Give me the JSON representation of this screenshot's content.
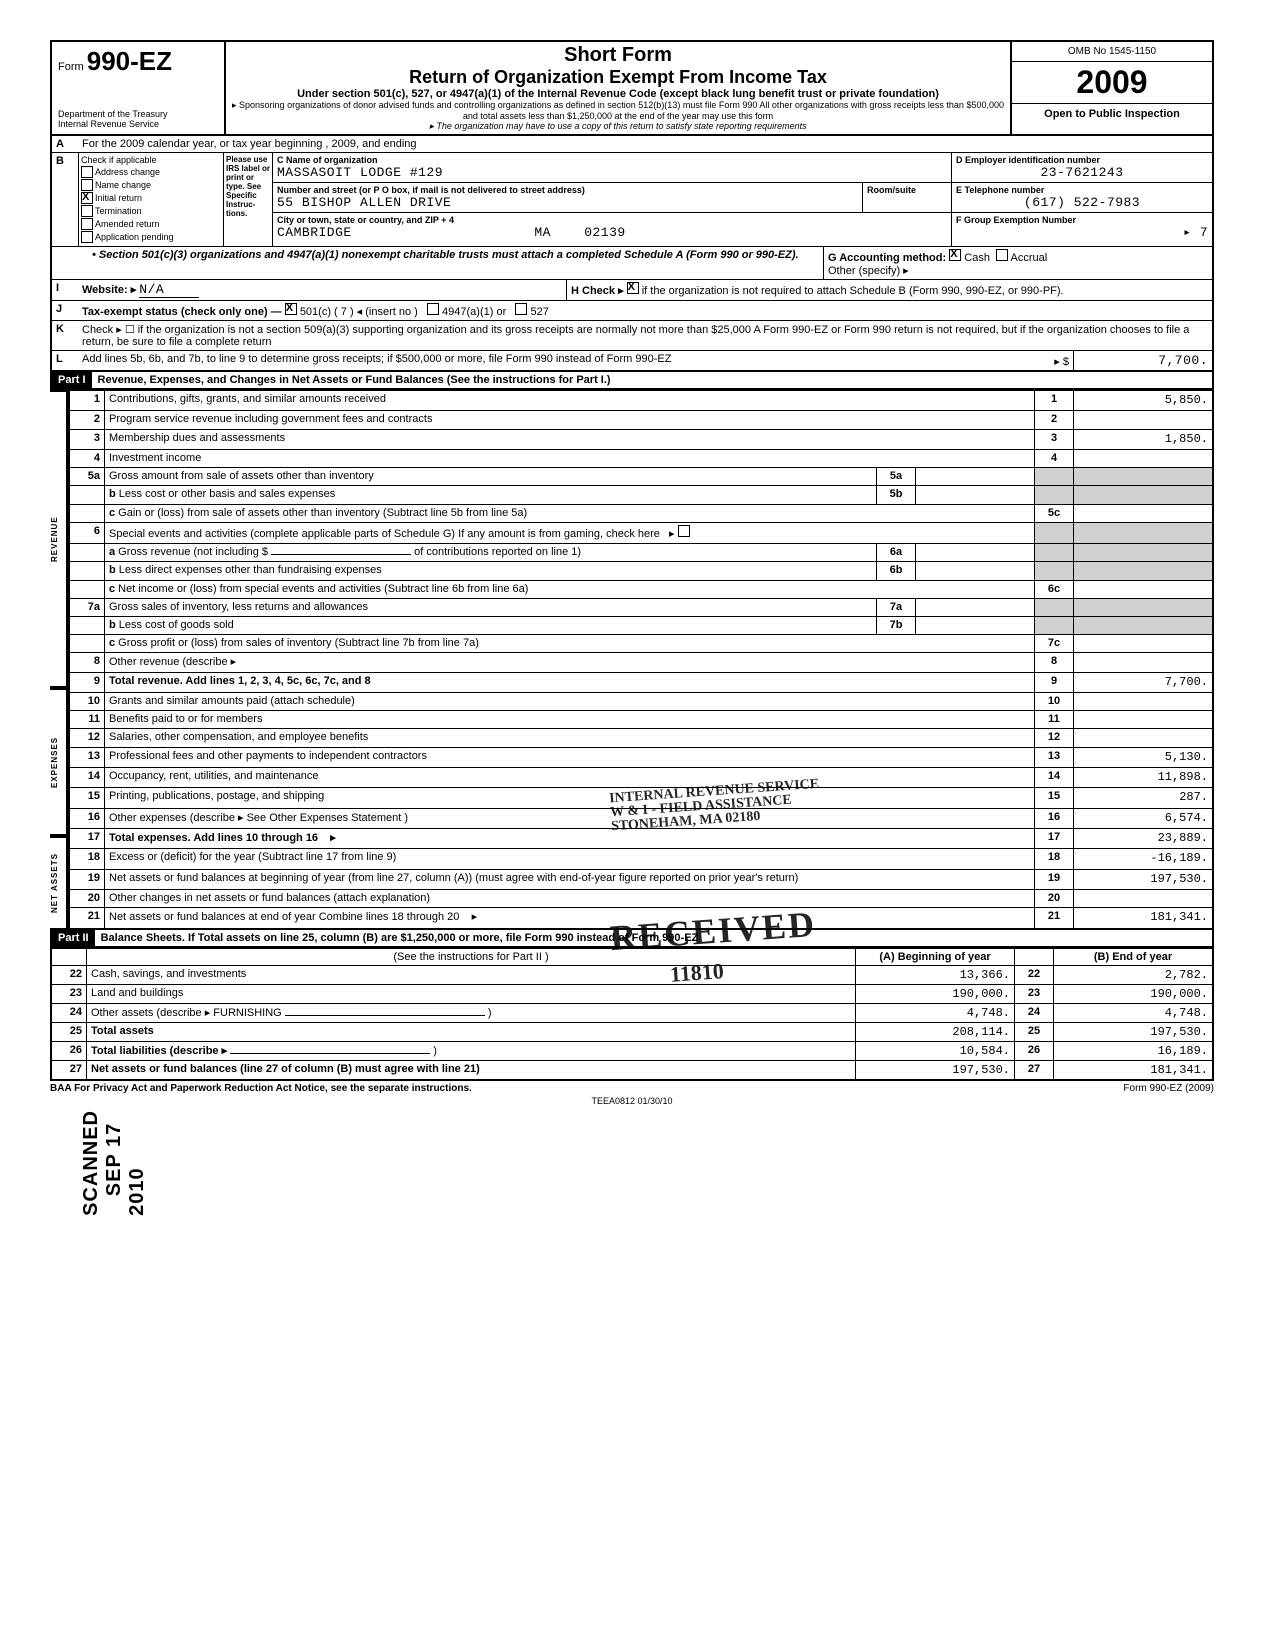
{
  "form": {
    "number_prefix": "Form",
    "number": "990-EZ",
    "dept1": "Department of the Treasury",
    "dept2": "Internal Revenue Service",
    "short_form": "Short Form",
    "title": "Return of Organization Exempt From Income Tax",
    "subtitle": "Under section 501(c), 527, or 4947(a)(1) of the Internal Revenue Code (except black lung benefit trust or private foundation)",
    "note1": "▸ Sponsoring organizations of donor advised funds and controlling organizations as defined in section 512(b)(13) must file Form 990  All other organizations with gross receipts less than $500,000 and total assets less than $1,250,000 at the end of the year may use this form",
    "note2": "▸ The organization may have to use a copy of this return to satisfy state reporting requirements",
    "omb": "OMB No 1545-1150",
    "year": "2009",
    "open_public": "Open to Public Inspection"
  },
  "line_a": "For the 2009 calendar year, or tax year beginning                                          , 2009, and ending",
  "section_b": {
    "header": "Check if applicable",
    "please": "Please use IRS label or print or type. See Specific Instruc-tions.",
    "items": [
      {
        "label": "Address change",
        "checked": false
      },
      {
        "label": "Name change",
        "checked": false
      },
      {
        "label": "Initial return",
        "checked": true
      },
      {
        "label": "Termination",
        "checked": false
      },
      {
        "label": "Amended return",
        "checked": false
      },
      {
        "label": "Application pending",
        "checked": false
      }
    ]
  },
  "org": {
    "c_label": "C   Name of organization",
    "name": "MASSASOIT LODGE #129",
    "addr_label": "Number and street (or P O  box, if mail is not delivered to street address)",
    "room_label": "Room/suite",
    "street": "55 BISHOP ALLEN DRIVE",
    "city_label": "City or town, state or country, and ZIP + 4",
    "city": "CAMBRIDGE",
    "state": "MA",
    "zip": "02139"
  },
  "right": {
    "d_label": "D   Employer identification number",
    "ein": "23-7621243",
    "e_label": "E   Telephone number",
    "phone": "(617) 522-7983",
    "f_label": "F   Group Exemption Number",
    "group_arrow": "▸ 7"
  },
  "section_501_note": "• Section 501(c)(3) organizations and 4947(a)(1) nonexempt charitable trusts must attach a completed Schedule A (Form 990 or 990-EZ).",
  "g": {
    "label": "G   Accounting method:",
    "cash_checked": true,
    "cash": "Cash",
    "accrual": "Accrual",
    "other": "Other (specify) ▸"
  },
  "h": {
    "label": "H   Check ▸",
    "checked": true,
    "text": "if the organization is not required to attach Schedule B (Form 990, 990-EZ, or 990-PF)."
  },
  "i": {
    "label": "Website: ▸",
    "value": "N/A"
  },
  "j": {
    "label": "Tax-exempt status (check only one) —",
    "checked": true,
    "501c": "501(c) (       7  ) ◂ (insert no )",
    "4947": "4947(a)(1) or",
    "527": "527"
  },
  "k": "Check ▸  ☐  if the organization is not a section 509(a)(3) supporting organization and its gross receipts are normally not more than $25,000  A Form 990-EZ or Form 990 return is not required, but if the organization chooses to file a return, be sure to file a complete return",
  "l": {
    "text": "Add lines 5b, 6b, and 7b, to line 9 to determine gross receipts; if $500,000 or more, file Form 990 instead of Form 990-EZ",
    "arrow": "▸ $",
    "value": "7,700."
  },
  "part1": {
    "label": "Part I",
    "title": "Revenue, Expenses, and Changes in Net Assets or Fund Balances (See the instructions for Part I.)",
    "side_rev": "REVENUE",
    "side_exp": "EXPENSES",
    "side_net": "NET ASSETS",
    "rows": {
      "1": {
        "desc": "Contributions, gifts, grants, and similar amounts received",
        "val": "5,850."
      },
      "2": {
        "desc": "Program service revenue including government fees and contracts",
        "val": ""
      },
      "3": {
        "desc": "Membership dues and assessments",
        "val": "1,850."
      },
      "4": {
        "desc": "Investment income",
        "val": ""
      },
      "5a": {
        "desc": "Gross amount from sale of assets other than inventory"
      },
      "5b": {
        "desc": "Less  cost or other basis and sales expenses"
      },
      "5c": {
        "desc": "Gain or (loss) from sale of assets other than inventory (Subtract line 5b from line 5a)",
        "val": ""
      },
      "6": {
        "desc": "Special events and activities (complete applicable parts of Schedule G)  If any amount is from gaming, check here"
      },
      "6a_pre": "Gross revenue (not including $",
      "6a_post": "of contributions reported on line 1)",
      "6b": {
        "desc": "Less  direct expenses other than fundraising expenses"
      },
      "6c": {
        "desc": "Net income or (loss) from special events and activities (Subtract line 6b from line 6a)",
        "val": ""
      },
      "7a": {
        "desc": "Gross sales of inventory, less returns and allowances"
      },
      "7b": {
        "desc": "Less  cost of goods sold"
      },
      "7c": {
        "desc": "Gross profit or (loss) from sales of inventory (Subtract line 7b from line 7a)",
        "val": ""
      },
      "8": {
        "desc": "Other revenue (describe ▸",
        "val": ""
      },
      "9": {
        "desc": "Total revenue. Add lines 1, 2, 3, 4, 5c, 6c, 7c, and 8",
        "val": "7,700."
      },
      "10": {
        "desc": "Grants and similar amounts paid (attach schedule)",
        "val": ""
      },
      "11": {
        "desc": "Benefits paid to or for members",
        "val": ""
      },
      "12": {
        "desc": "Salaries, other compensation, and employee benefits",
        "val": ""
      },
      "13": {
        "desc": "Professional fees and other payments to independent contractors",
        "val": "5,130."
      },
      "14": {
        "desc": "Occupancy, rent, utilities, and maintenance",
        "val": "11,898."
      },
      "15": {
        "desc": "Printing, publications, postage, and shipping",
        "val": "287."
      },
      "16": {
        "desc": "Other expenses (describe ▸  See Other Expenses Statement",
        "val": "6,574."
      },
      "17": {
        "desc": "Total expenses. Add lines 10 through 16",
        "val": "23,889."
      },
      "18": {
        "desc": "Excess or (deficit) for the year (Subtract line 17 from line 9)",
        "val": "-16,189."
      },
      "19": {
        "desc": "Net assets or fund balances at beginning of year (from line 27, column (A)) (must agree with end-of-year figure reported on prior year's return)",
        "val": "197,530."
      },
      "20": {
        "desc": "Other changes in net assets or fund balances (attach explanation)",
        "val": ""
      },
      "21": {
        "desc": "Net assets or fund balances at end of year  Combine lines 18 through 20",
        "val": "181,341."
      }
    }
  },
  "part2": {
    "label": "Part II",
    "title": "Balance Sheets. If Total assets on line 25, column (B) are $1,250,000 or more, file Form 990 instead of Form 990-EZ",
    "instr": "(See the instructions for Part II )",
    "col_a": "(A) Beginning of year",
    "col_b": "(B) End of year",
    "rows": [
      {
        "n": "22",
        "desc": "Cash, savings, and investments",
        "a": "13,366.",
        "b": "2,782."
      },
      {
        "n": "23",
        "desc": "Land and buildings",
        "a": "190,000.",
        "b": "190,000."
      },
      {
        "n": "24",
        "desc": "Other assets (describe ▸   FURNISHING",
        "a": "4,748.",
        "b": "4,748."
      },
      {
        "n": "25",
        "desc": "Total assets",
        "a": "208,114.",
        "b": "197,530.",
        "bold": true
      },
      {
        "n": "26",
        "desc": "Total liabilities (describe ▸",
        "a": "10,584.",
        "b": "16,189.",
        "bold": true
      },
      {
        "n": "27",
        "desc": "Net assets or fund balances (line 27 of column (B) must agree with line 21)",
        "a": "197,530.",
        "b": "181,341.",
        "bold": true
      }
    ]
  },
  "footer": {
    "baa": "BAA  For Privacy Act and Paperwork Reduction Act Notice, see the separate instructions.",
    "code": "TEEA0812   01/30/10",
    "form": "Form 990-EZ (2009)"
  },
  "stamps": {
    "irs": "INTERNAL REVENUE SERVICE",
    "assist": "W & I - FIELD ASSISTANCE",
    "city": "STONEHAM, MA 02180",
    "received": "RECEIVED",
    "num": "11810",
    "date": "SEP 17 2010",
    "scanned": "SCANNED"
  }
}
